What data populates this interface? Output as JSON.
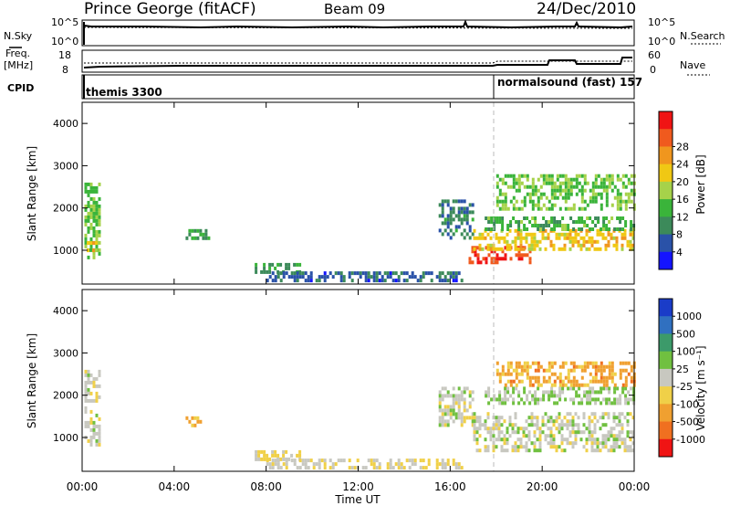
{
  "header": {
    "station": "Prince George (fitACF)",
    "beam": "Beam 09",
    "date": "24/Dec/2010"
  },
  "noise_panel": {
    "left_label": "N.Sky",
    "right_label": "N.Search",
    "left_ticks": [
      "10^5",
      "10^0"
    ],
    "right_ticks": [
      "10^5",
      "10^0"
    ]
  },
  "freq_panel": {
    "left_label_1": "Freq.",
    "left_label_2": "[MHz]",
    "right_label": "Nave",
    "left_ticks": [
      "18",
      "8"
    ],
    "right_ticks": [
      "60",
      "0"
    ]
  },
  "cpid_panel": {
    "label": "CPID",
    "segments": [
      {
        "text": "themis 3300",
        "start_hour": 0,
        "end_hour": 18
      },
      {
        "text": "normalsound (fast)  157",
        "start_hour": 18,
        "end_hour": 24
      }
    ]
  },
  "x_axis": {
    "label": "Time UT",
    "ticks": [
      "00:00",
      "04:00",
      "08:00",
      "12:00",
      "16:00",
      "20:00",
      "00:00"
    ]
  },
  "colors": {
    "power_scale": [
      "#1414ff",
      "#2a52a8",
      "#3c8a5a",
      "#3ab43a",
      "#a6d24a",
      "#f0c814",
      "#f0961e",
      "#f05a1e",
      "#f01414"
    ],
    "velocity_scale": [
      "#1a3cc8",
      "#3070c0",
      "#3c9a6a",
      "#70c040",
      "#c8c8c0",
      "#f0d048",
      "#f0a030",
      "#f07020",
      "#f01414"
    ]
  },
  "chart_data": [
    {
      "type": "heatmap",
      "title": "Power",
      "ylabel": "Slant Range [km]",
      "ylim": [
        200,
        4500
      ],
      "yticks": [
        "1000",
        "2000",
        "3000",
        "4000"
      ],
      "xlim": [
        0,
        24
      ],
      "colorbar": {
        "label": "Power [dB]",
        "range": [
          0,
          32
        ],
        "ticks": [
          "4",
          "8",
          "12",
          "16",
          "20",
          "24",
          "28"
        ]
      },
      "regions": [
        {
          "t0": 0.1,
          "t1": 0.8,
          "r0": 800,
          "r1": 2600,
          "value": 14
        },
        {
          "t0": 0.2,
          "t1": 0.7,
          "r0": 1000,
          "r1": 1300,
          "value": 20
        },
        {
          "t0": 4.5,
          "t1": 5.5,
          "r0": 1300,
          "r1": 1500,
          "value": 12
        },
        {
          "t0": 7.5,
          "t1": 9.5,
          "r0": 500,
          "r1": 700,
          "value": 10
        },
        {
          "t0": 8.0,
          "t1": 16.5,
          "r0": 250,
          "r1": 500,
          "value": 6
        },
        {
          "t0": 15.5,
          "t1": 17.0,
          "r0": 1300,
          "r1": 2200,
          "value": 8
        },
        {
          "t0": 16.8,
          "t1": 19.5,
          "r0": 700,
          "r1": 1100,
          "value": 28
        },
        {
          "t0": 17.0,
          "t1": 24.0,
          "r0": 1000,
          "r1": 1500,
          "value": 20
        },
        {
          "t0": 17.5,
          "t1": 24.0,
          "r0": 1500,
          "r1": 1800,
          "value": 12
        },
        {
          "t0": 18.0,
          "t1": 24.0,
          "r0": 2000,
          "r1": 2800,
          "value": 14
        }
      ]
    },
    {
      "type": "heatmap",
      "title": "Velocity",
      "ylabel": "Slant Range [km]",
      "ylim": [
        200,
        4500
      ],
      "yticks": [
        "1000",
        "2000",
        "3000",
        "4000"
      ],
      "xlim": [
        0,
        24
      ],
      "colorbar": {
        "label": "Velocity [m s⁻¹]",
        "range": [
          -1200,
          1200
        ],
        "ticks": [
          "1000",
          "500",
          "100",
          "25",
          "-25",
          "-100",
          "-500",
          "-1000"
        ]
      },
      "regions": [
        {
          "t0": 0.1,
          "t1": 0.8,
          "r0": 800,
          "r1": 2600,
          "value": 0
        },
        {
          "t0": 4.5,
          "t1": 5.2,
          "r0": 1300,
          "r1": 1500,
          "value": -400
        },
        {
          "t0": 7.5,
          "t1": 9.5,
          "r0": 500,
          "r1": 700,
          "value": -150
        },
        {
          "t0": 8.0,
          "t1": 16.5,
          "r0": 250,
          "r1": 500,
          "value": -100
        },
        {
          "t0": 15.5,
          "t1": 17.0,
          "r0": 1300,
          "r1": 2200,
          "value": 0
        },
        {
          "t0": 17.0,
          "t1": 24.0,
          "r0": 700,
          "r1": 1600,
          "value": 0
        },
        {
          "t0": 17.5,
          "t1": 24.0,
          "r0": 1800,
          "r1": 2200,
          "value": 150
        },
        {
          "t0": 18.0,
          "t1": 24.0,
          "r0": 2200,
          "r1": 2800,
          "value": -500
        }
      ]
    }
  ]
}
